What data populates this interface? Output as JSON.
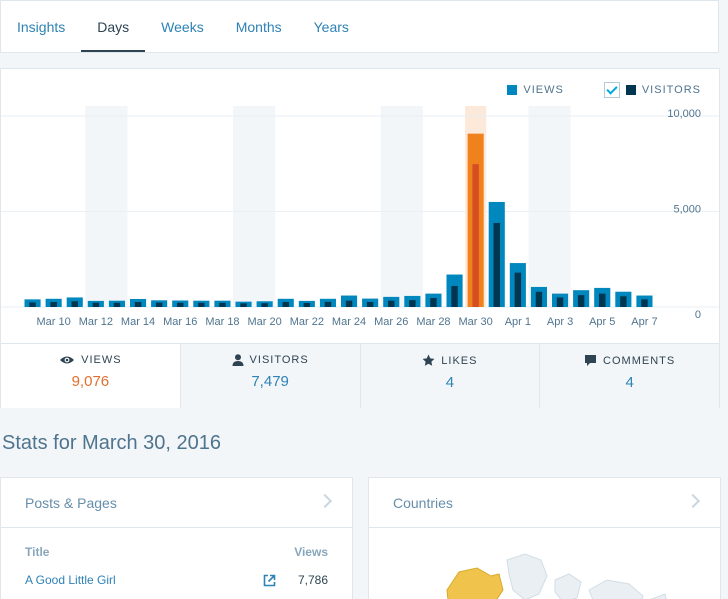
{
  "tabs": [
    {
      "label": "Insights",
      "active": false
    },
    {
      "label": "Days",
      "active": true
    },
    {
      "label": "Weeks",
      "active": false
    },
    {
      "label": "Months",
      "active": false
    },
    {
      "label": "Years",
      "active": false
    }
  ],
  "legend": {
    "views": "VIEWS",
    "visitors": "VISITORS",
    "visitors_checked": true
  },
  "colors": {
    "views": "#0087be",
    "visitors": "#00364f",
    "selected_views": "#f0821e",
    "selected_visitors": "#d54e21",
    "weekend_band": "#f3f6f8"
  },
  "chart_data": {
    "type": "bar",
    "y_ticks": [
      "10,000",
      "5,000",
      "0"
    ],
    "ylim": [
      0,
      10000
    ],
    "x_labels": [
      "Mar 10",
      "Mar 12",
      "Mar 14",
      "Mar 16",
      "Mar 18",
      "Mar 20",
      "Mar 22",
      "Mar 24",
      "Mar 26",
      "Mar 28",
      "Mar 30",
      "Apr 1",
      "Apr 3",
      "Apr 5",
      "Apr 7"
    ],
    "categories": [
      "Mar 9",
      "Mar 10",
      "Mar 11",
      "Mar 12",
      "Mar 13",
      "Mar 14",
      "Mar 15",
      "Mar 16",
      "Mar 17",
      "Mar 18",
      "Mar 19",
      "Mar 20",
      "Mar 21",
      "Mar 22",
      "Mar 23",
      "Mar 24",
      "Mar 25",
      "Mar 26",
      "Mar 27",
      "Mar 28",
      "Mar 29",
      "Mar 30",
      "Mar 31",
      "Apr 1",
      "Apr 2",
      "Apr 3",
      "Apr 4",
      "Apr 5",
      "Apr 6",
      "Apr 7"
    ],
    "series": [
      {
        "name": "VIEWS",
        "values": [
          400,
          430,
          500,
          320,
          330,
          420,
          350,
          340,
          330,
          330,
          280,
          300,
          430,
          320,
          430,
          600,
          440,
          530,
          580,
          700,
          1700,
          9076,
          5500,
          2300,
          1050,
          700,
          880,
          1000,
          800,
          600
        ]
      },
      {
        "name": "VISITORS",
        "values": [
          240,
          260,
          300,
          220,
          220,
          260,
          230,
          220,
          220,
          220,
          190,
          200,
          260,
          210,
          270,
          330,
          260,
          330,
          360,
          470,
          1100,
          7479,
          4400,
          1800,
          800,
          500,
          620,
          700,
          560,
          400
        ]
      }
    ],
    "selected": "Mar 30",
    "weekend_bands": [
      [
        "Mar 12",
        "Mar 13"
      ],
      [
        "Mar 19",
        "Mar 20"
      ],
      [
        "Mar 26",
        "Mar 27"
      ],
      [
        "Apr 2",
        "Apr 3"
      ]
    ]
  },
  "tiles": [
    {
      "label": "VIEWS",
      "value": "9,076",
      "icon": "eye-icon"
    },
    {
      "label": "VISITORS",
      "value": "7,479",
      "icon": "person-icon"
    },
    {
      "label": "LIKES",
      "value": "4",
      "icon": "star-icon"
    },
    {
      "label": "COMMENTS",
      "value": "4",
      "icon": "comment-icon"
    }
  ],
  "section_title": "Stats for March 30, 2016",
  "posts_pages": {
    "title": "Posts & Pages",
    "col_title": "Title",
    "col_views": "Views",
    "rows": [
      {
        "title": "A Good Little Girl",
        "views": "7,786"
      }
    ]
  },
  "countries": {
    "title": "Countries"
  }
}
